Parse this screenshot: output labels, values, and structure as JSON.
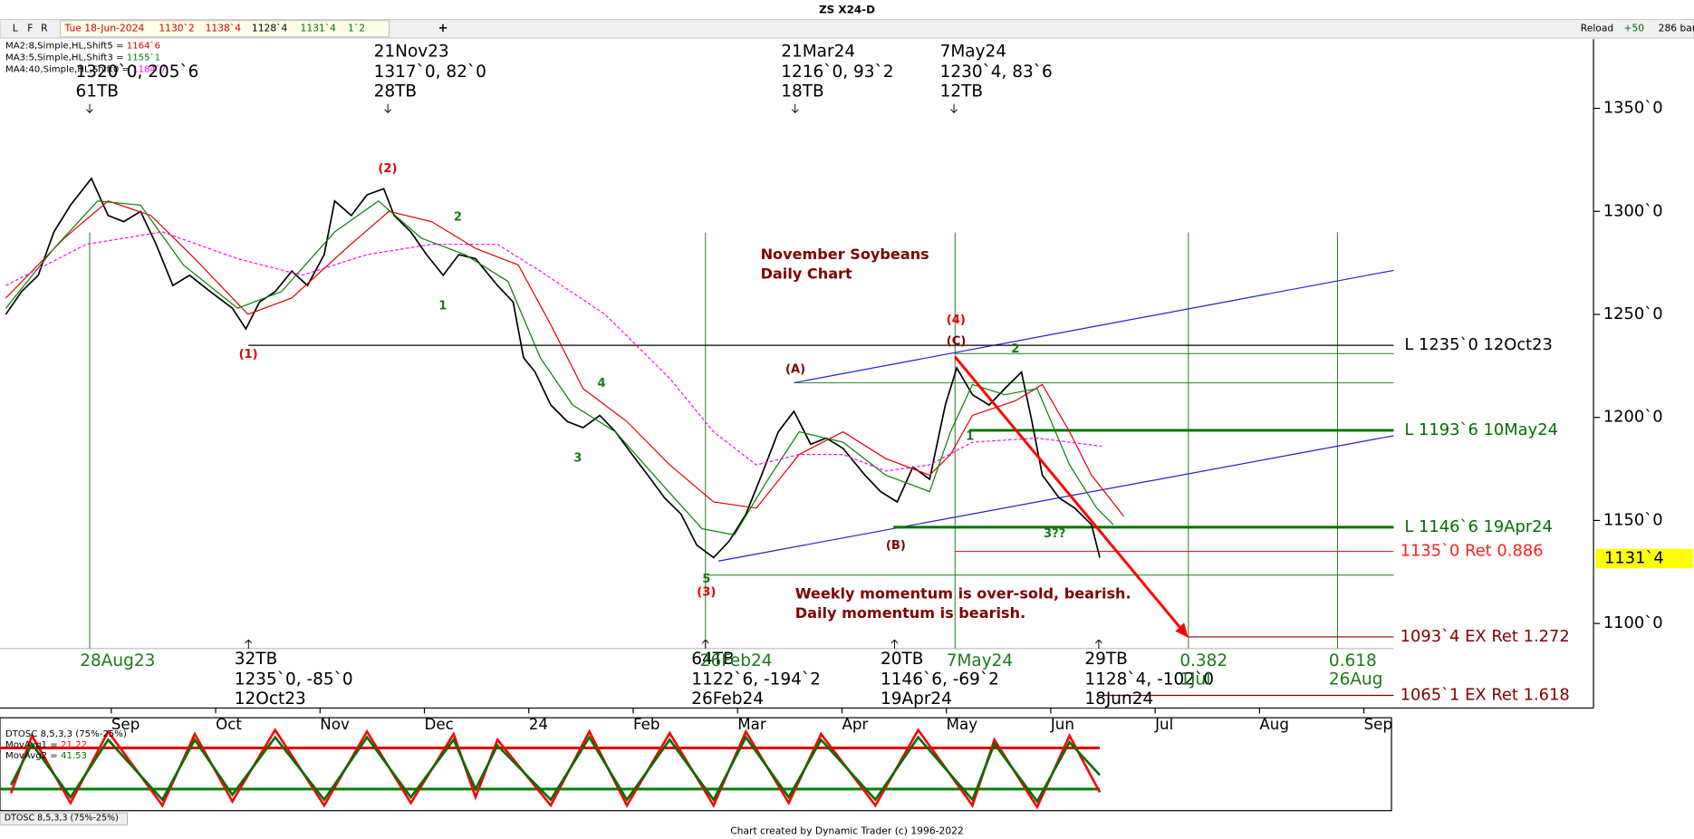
{
  "chart_data": {
    "type": "line",
    "title": "ZS X24-D",
    "toolbar": {
      "buttons": [
        "L",
        "F",
        "R"
      ],
      "date": "Tue 18-Jun-2024",
      "ohlc": [
        "1130`2",
        "1138`4",
        "1128`4",
        "1131`4"
      ],
      "change": "1`2",
      "plus": "+",
      "reload": "Reload",
      "bars_step": "+50",
      "bars": "286 bars"
    },
    "legend_separator": " = ",
    "xlim": [
      -1.066,
      14.2
    ],
    "xticks": [
      {
        "value": 0,
        "label": "Sep"
      },
      {
        "value": 1,
        "label": "Oct"
      },
      {
        "value": 2,
        "label": "Nov"
      },
      {
        "value": 3,
        "label": "Dec"
      },
      {
        "value": 4,
        "label": "24"
      },
      {
        "value": 5,
        "label": "Feb"
      },
      {
        "value": 6,
        "label": "Mar"
      },
      {
        "value": 7,
        "label": "Apr"
      },
      {
        "value": 8,
        "label": "May"
      },
      {
        "value": 9,
        "label": "Jun"
      },
      {
        "value": 10,
        "label": "Jul"
      },
      {
        "value": 11,
        "label": "Aug"
      },
      {
        "value": 12,
        "label": "Sep"
      }
    ],
    "ylim": [
      1059,
      1393
    ],
    "yticks": [
      {
        "value": 1100,
        "label": "1100`0"
      },
      {
        "value": 1150,
        "label": "1150`0"
      },
      {
        "value": 1200,
        "label": "1200`0"
      },
      {
        "value": 1250,
        "label": "1250`0"
      },
      {
        "value": 1300,
        "label": "1300`0"
      },
      {
        "value": 1350,
        "label": "1350`0"
      }
    ],
    "series": [
      {
        "color": "#000000",
        "x": [
          -1.01,
          -0.86,
          -0.7,
          -0.55,
          -0.39,
          -0.19,
          -0.03,
          0.12,
          0.28,
          0.43,
          0.59,
          0.75,
          0.95,
          1.16,
          1.29,
          1.42,
          1.57,
          1.73,
          1.88,
          2.04,
          2.14,
          2.3,
          2.45,
          2.61,
          2.71,
          2.87,
          3.02,
          3.18,
          3.33,
          3.49,
          3.7,
          3.85,
          3.95,
          4.06,
          4.21,
          4.37,
          4.52,
          4.68,
          4.83,
          4.99,
          5.14,
          5.3,
          5.46,
          5.61,
          5.77,
          5.92,
          6.08,
          6.23,
          6.39,
          6.54,
          6.7,
          6.85,
          7.01,
          7.22,
          7.37,
          7.53,
          7.68,
          7.84,
          7.99,
          8.1,
          8.25,
          8.41,
          8.56,
          8.72,
          8.82,
          8.92,
          9.08,
          9.23,
          9.39,
          9.47
        ],
        "values": [
          1250,
          1261,
          1269,
          1290,
          1303,
          1316,
          1298,
          1295,
          1300,
          1284,
          1264,
          1269,
          1261,
          1253,
          1243,
          1256,
          1261,
          1271,
          1264,
          1279,
          1305,
          1298,
          1308,
          1311,
          1298,
          1290,
          1279,
          1269,
          1279,
          1277,
          1264,
          1256,
          1229,
          1222,
          1206,
          1198,
          1195,
          1201,
          1193,
          1182,
          1172,
          1161,
          1153,
          1138,
          1132,
          1140,
          1153,
          1172,
          1193,
          1203,
          1187,
          1190,
          1185,
          1172,
          1164,
          1159,
          1176,
          1170,
          1206,
          1224,
          1211,
          1206,
          1214,
          1222,
          1198,
          1172,
          1161,
          1156,
          1148,
          1132
        ]
      },
      {
        "name": "MA2:8,Simple,HL,Shift5",
        "last_label": "1164`6",
        "color": "#e00000",
        "x": [
          -1.01,
          -0.45,
          -0.03,
          0.38,
          0.8,
          1.31,
          1.73,
          2.25,
          2.66,
          3.07,
          3.49,
          3.9,
          4.21,
          4.52,
          4.94,
          5.35,
          5.77,
          6.18,
          6.59,
          7.01,
          7.42,
          7.84,
          8.04,
          8.25,
          8.66,
          8.92,
          9.18,
          9.39,
          9.7
        ],
        "values": [
          1258,
          1287,
          1305,
          1298,
          1277,
          1250,
          1258,
          1282,
          1300,
          1295,
          1282,
          1274,
          1245,
          1214,
          1198,
          1177,
          1159,
          1156,
          1182,
          1193,
          1180,
          1172,
          1182,
          1201,
          1208,
          1216,
          1193,
          1172,
          1152
        ]
      },
      {
        "name": "MA3:5,Simple,HL,Shift3",
        "last_label": "1155`1",
        "color": "#008000",
        "x": [
          -1.01,
          -0.55,
          -0.13,
          0.28,
          0.69,
          1.21,
          1.63,
          2.14,
          2.56,
          2.97,
          3.39,
          3.8,
          4.11,
          4.42,
          4.83,
          5.25,
          5.66,
          5.97,
          6.28,
          6.59,
          7.01,
          7.42,
          7.84,
          8.04,
          8.25,
          8.56,
          8.87,
          9.18,
          9.44,
          9.6
        ],
        "values": [
          1253,
          1282,
          1305,
          1303,
          1274,
          1253,
          1261,
          1290,
          1305,
          1287,
          1279,
          1266,
          1229,
          1206,
          1193,
          1169,
          1146,
          1143,
          1169,
          1193,
          1188,
          1172,
          1164,
          1193,
          1216,
          1211,
          1214,
          1177,
          1156,
          1148
        ]
      },
      {
        "name": "MA4:40,Simple,HL,Shift0",
        "last_label": "1184`7",
        "color": "#ff00ff",
        "dash": true,
        "x": [
          -1.01,
          -0.24,
          0.49,
          1.21,
          1.83,
          2.45,
          3.07,
          3.7,
          4.11,
          4.73,
          5.35,
          5.77,
          6.18,
          6.59,
          7.01,
          7.42,
          7.84,
          8.25,
          8.87,
          9.49
        ],
        "values": [
          1264,
          1284,
          1290,
          1277,
          1269,
          1279,
          1284,
          1284,
          1271,
          1250,
          1219,
          1193,
          1177,
          1182,
          1182,
          1174,
          1177,
          1188,
          1190,
          1186
        ]
      }
    ],
    "levels": [
      {
        "value": 1235,
        "label": "L 1235`0 12Oct23",
        "color": "#000000"
      },
      {
        "value": 1193.75,
        "label": "L 1193`6 10May24",
        "color": "#007000"
      },
      {
        "value": 1146.75,
        "label": "L 1146`6 19Apr24",
        "color": "#007000"
      },
      {
        "value": 1135,
        "label": "1135`0 Ret 0.886",
        "color": "#ff2020"
      },
      {
        "value": 1093.5,
        "label": "1093`4 EX Ret 1.272",
        "color": "#800000"
      },
      {
        "value": 1065.125,
        "label": "1065`1 EX Ret 1.618",
        "color": "#800000"
      }
    ],
    "last_price": {
      "value": 1131.5,
      "label": "1131`4"
    },
    "annotations": [
      {
        "text": "1320`0, 205`6",
        "color": "#000000"
      },
      {
        "text": "61TB",
        "color": "#000000"
      },
      {
        "text": "21Nov23",
        "color": "#000000"
      },
      {
        "text": "1317`0, 82`0",
        "color": "#000000"
      },
      {
        "text": "28TB",
        "color": "#000000"
      },
      {
        "text": "21Mar24",
        "color": "#000000"
      },
      {
        "text": "1216`0, 93`2",
        "color": "#000000"
      },
      {
        "text": "18TB",
        "color": "#000000"
      },
      {
        "text": "7May24",
        "color": "#000000"
      },
      {
        "text": "1230`4, 83`6",
        "color": "#000000"
      },
      {
        "text": "12TB",
        "color": "#000000"
      },
      {
        "text": "28Aug23",
        "color": "#1a7a1a"
      },
      {
        "text": "32TB",
        "color": "#000000"
      },
      {
        "text": "1235`0, -85`0",
        "color": "#000000"
      },
      {
        "text": "12Oct23",
        "color": "#000000"
      },
      {
        "text": "64TB",
        "color": "#000000"
      },
      {
        "text": "1122`6, -194`2",
        "color": "#000000"
      },
      {
        "text": "26Feb24",
        "color": "#000000"
      },
      {
        "text": "26Feb24",
        "color": "#1a7a1a"
      },
      {
        "text": "20TB",
        "color": "#000000"
      },
      {
        "text": "1146`6, -69`2",
        "color": "#000000"
      },
      {
        "text": "19Apr24",
        "color": "#000000"
      },
      {
        "text": "7May24",
        "color": "#1a7a1a"
      },
      {
        "text": "29TB",
        "color": "#000000"
      },
      {
        "text": "1128`4, -102`0",
        "color": "#000000"
      },
      {
        "text": "18Jun24",
        "color": "#000000"
      },
      {
        "text": "0.382",
        "color": "#1a7a1a"
      },
      {
        "text": "1Jul",
        "color": "#1a7a1a"
      },
      {
        "text": "0.618",
        "color": "#1a7a1a"
      },
      {
        "text": "26Aug",
        "color": "#1a7a1a"
      },
      {
        "text": "(1)",
        "color": "#e00000"
      },
      {
        "text": "(2)",
        "color": "#e00000"
      },
      {
        "text": "(3)",
        "color": "#e00000"
      },
      {
        "text": "(4)",
        "color": "#e00000"
      },
      {
        "text": "(A)",
        "color": "#800000"
      },
      {
        "text": "(B)",
        "color": "#800000"
      },
      {
        "text": "(C)",
        "color": "#800000"
      },
      {
        "text": "1",
        "color": "#1a7a1a"
      },
      {
        "text": "2",
        "color": "#1a7a1a"
      },
      {
        "text": "3",
        "color": "#1a7a1a"
      },
      {
        "text": "4",
        "color": "#1a7a1a"
      },
      {
        "text": "5",
        "color": "#1a7a1a"
      },
      {
        "text": "1",
        "color": "#1a7a1a"
      },
      {
        "text": "2",
        "color": "#1a7a1a"
      },
      {
        "text": "3??",
        "color": "#1a7a1a"
      },
      {
        "text": "November Soybeans",
        "color": "#800000"
      },
      {
        "text": "Daily Chart",
        "color": "#800000"
      },
      {
        "text": "Weekly momentum is over-sold, bearish.",
        "color": "#800000"
      },
      {
        "text": "Daily momentum is bearish.",
        "color": "#800000"
      }
    ],
    "oscillator": {
      "title": "DTOSC 8,5,3,3 (75%-25%)",
      "ylim": [
        0,
        100
      ],
      "levels": [
        {
          "value": 75,
          "color": "#e00000"
        },
        {
          "value": 25,
          "color": "#008000"
        }
      ],
      "series": [
        {
          "name": "MovAvg1",
          "last": 21.22,
          "color": "#ff0000",
          "x": [
            -0.96,
            -0.76,
            -0.39,
            -0.03,
            0.49,
            0.8,
            1.16,
            1.57,
            2.04,
            2.45,
            2.87,
            3.28,
            3.49,
            3.7,
            4.21,
            4.58,
            4.94,
            5.35,
            5.77,
            6.08,
            6.49,
            6.8,
            7.32,
            7.73,
            8.25,
            8.46,
            8.87,
            9.18,
            9.47
          ],
          "values": [
            20,
            90,
            8,
            95,
            5,
            92,
            10,
            97,
            5,
            95,
            8,
            92,
            15,
            85,
            5,
            95,
            5,
            93,
            5,
            95,
            8,
            92,
            5,
            97,
            5,
            85,
            3,
            90,
            21
          ]
        },
        {
          "name": "MovAvg2",
          "last": 41.53,
          "color": "#007000",
          "x": [
            -0.96,
            -0.76,
            -0.39,
            -0.03,
            0.49,
            0.8,
            1.16,
            1.57,
            2.04,
            2.45,
            2.87,
            3.28,
            3.49,
            3.7,
            4.21,
            4.58,
            4.94,
            5.35,
            5.77,
            6.08,
            6.49,
            6.8,
            7.32,
            7.73,
            8.25,
            8.46,
            8.87,
            9.18,
            9.47
          ],
          "values": [
            30,
            80,
            15,
            85,
            12,
            85,
            18,
            88,
            12,
            88,
            15,
            85,
            25,
            78,
            12,
            88,
            12,
            85,
            12,
            88,
            15,
            85,
            12,
            88,
            12,
            80,
            10,
            82,
            42
          ]
        }
      ],
      "tab": "DTOSC 8,5,3,3 (75%-25%)"
    },
    "footer": "Chart created by Dynamic Trader  (c) 1996-2022"
  }
}
